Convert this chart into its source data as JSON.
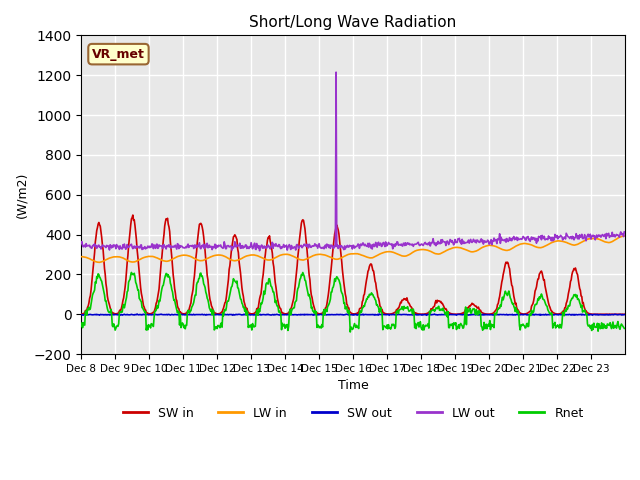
{
  "title": "Short/Long Wave Radiation",
  "xlabel": "Time",
  "ylabel": "(W/m2)",
  "ylim": [
    -200,
    1400
  ],
  "annotation": "VR_met",
  "bg_color": "#e8e8e8",
  "grid_color": "white",
  "x_tick_labels": [
    "Dec 8",
    "Dec 9",
    "Dec 10",
    "Dec 11",
    "Dec 12",
    "Dec 13",
    "Dec 14",
    "Dec 15",
    "Dec 16",
    "Dec 17",
    "Dec 18",
    "Dec 19",
    "Dec 20",
    "Dec 21",
    "Dec 22",
    "Dec 23"
  ],
  "series": {
    "SW_in": {
      "color": "#cc0000",
      "lw": 1.2
    },
    "LW_in": {
      "color": "#ff9900",
      "lw": 1.2
    },
    "SW_out": {
      "color": "#0000cc",
      "lw": 1.2
    },
    "LW_out": {
      "color": "#9933cc",
      "lw": 1.2
    },
    "Rnet": {
      "color": "#00cc00",
      "lw": 1.2
    }
  },
  "legend_labels": [
    "SW in",
    "LW in",
    "SW out",
    "LW out",
    "Rnet"
  ],
  "legend_colors": [
    "#cc0000",
    "#ff9900",
    "#0000cc",
    "#9933cc",
    "#00cc00"
  ]
}
